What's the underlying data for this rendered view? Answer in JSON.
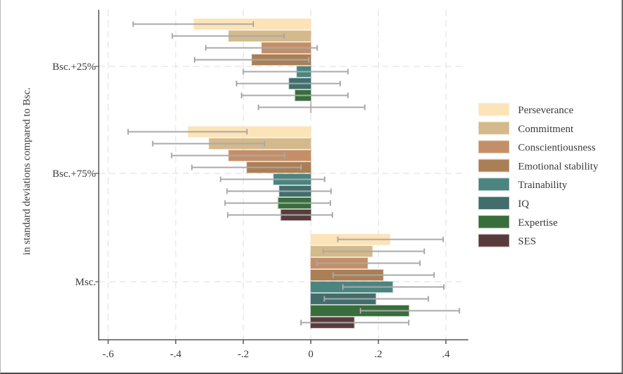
{
  "chart_data": {
    "type": "bar",
    "orientation": "horizontal",
    "title": "",
    "xlabel": "",
    "ylabel": "in standard deviations compared to Bsc.",
    "xlim": [
      -0.62,
      0.47
    ],
    "xticks": [
      -0.6,
      -0.4,
      -0.2,
      0,
      0.2,
      0.4
    ],
    "xtick_labels": [
      "-.6",
      "-.4",
      "-.2",
      "0",
      ".2",
      ".4"
    ],
    "grid": true,
    "legend_position": "right",
    "categories": [
      "Bsc.+25%",
      "Bsc.+75%",
      "Msc."
    ],
    "series": [
      {
        "name": "Perseverance",
        "color": "#fde3b8",
        "values": [
          -0.346,
          -0.363,
          0.234
        ],
        "ci_low": [
          -0.526,
          -0.541,
          0.08
        ],
        "ci_high": [
          -0.17,
          -0.189,
          0.392
        ]
      },
      {
        "name": "Commitment",
        "color": "#d4b98c",
        "values": [
          -0.243,
          -0.301,
          0.182
        ],
        "ci_low": [
          -0.41,
          -0.468,
          0.037
        ],
        "ci_high": [
          -0.079,
          -0.137,
          0.336
        ]
      },
      {
        "name": "Conscientiousness",
        "color": "#c48f68",
        "values": [
          -0.145,
          -0.243,
          0.168
        ],
        "ci_low": [
          -0.311,
          -0.412,
          0.018
        ],
        "ci_high": [
          0.019,
          -0.077,
          0.323
        ]
      },
      {
        "name": "Emotional stability",
        "color": "#ab7f55",
        "values": [
          -0.174,
          -0.189,
          0.214
        ],
        "ci_low": [
          -0.344,
          -0.352,
          0.066
        ],
        "ci_high": [
          -0.006,
          -0.029,
          0.365
        ]
      },
      {
        "name": "Trainability",
        "color": "#4b8580",
        "values": [
          -0.041,
          -0.11,
          0.242
        ],
        "ci_low": [
          -0.2,
          -0.267,
          0.095
        ],
        "ci_high": [
          0.11,
          0.041,
          0.394
        ]
      },
      {
        "name": "IQ",
        "color": "#416e6c",
        "values": [
          -0.064,
          -0.093,
          0.192
        ],
        "ci_low": [
          -0.22,
          -0.248,
          0.04
        ],
        "ci_high": [
          0.087,
          0.06,
          0.348
        ]
      },
      {
        "name": "Expertise",
        "color": "#386e3b",
        "values": [
          -0.046,
          -0.096,
          0.29
        ],
        "ci_low": [
          -0.205,
          -0.254,
          0.147
        ],
        "ci_high": [
          0.11,
          0.058,
          0.44
        ]
      },
      {
        "name": "SES",
        "color": "#5a3b3d",
        "values": [
          0.0,
          -0.088,
          0.128
        ],
        "ci_low": [
          -0.155,
          -0.246,
          -0.029
        ],
        "ci_high": [
          0.16,
          0.064,
          0.29
        ]
      }
    ]
  }
}
